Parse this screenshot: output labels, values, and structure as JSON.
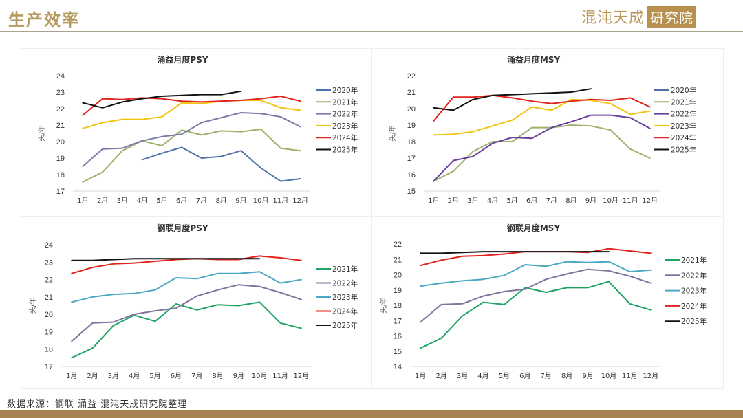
{
  "header": {
    "title": "生产效率",
    "logo_script": "混沌天成",
    "logo_box": "研究院"
  },
  "colors": {
    "title": "#b49a5e",
    "footer_bar": "#a98151",
    "2020年": "#4e73a8",
    "2021年_yongyi": "#9db26a",
    "2022年_yongyi_psy": "#7a79a8",
    "2022年_yongyi_msy": "#6a3fa0",
    "2023年_yongyi": "#f2c40f",
    "2024年": "#e0231c",
    "2025年": "#111111",
    "2021年_ganglian": "#1fa463",
    "2022年_ganglian": "#7f73a0",
    "2023年_ganglian": "#4aa8c4"
  },
  "source": "数据来源：钢联 涌益 混沌天成研究院整理",
  "chart_data": [
    {
      "id": "yongyi-psy",
      "type": "line",
      "title": "涌益月度PSY",
      "xlabel": "",
      "ylabel": "头/年",
      "ylim": [
        17,
        24
      ],
      "yticks": [
        17,
        18,
        19,
        20,
        21,
        22,
        23,
        24
      ],
      "categories": [
        "1月",
        "2月",
        "3月",
        "4月",
        "5月",
        "6月",
        "7月",
        "8月",
        "9月",
        "10月",
        "11月",
        "12月"
      ],
      "legend": "right",
      "grid": false,
      "series": [
        {
          "name": "2020年",
          "color": "#4e73a8",
          "values": [
            null,
            null,
            null,
            18.9,
            19.3,
            19.65,
            19.0,
            19.1,
            19.45,
            18.4,
            17.6,
            17.75
          ]
        },
        {
          "name": "2021年",
          "color": "#9db26a",
          "values": [
            17.55,
            18.15,
            19.45,
            20.05,
            19.75,
            20.7,
            20.4,
            20.65,
            20.6,
            20.75,
            19.6,
            19.45
          ]
        },
        {
          "name": "2022年",
          "color": "#7a79a8",
          "values": [
            18.5,
            19.55,
            19.6,
            20.05,
            20.3,
            20.45,
            21.15,
            21.45,
            21.75,
            21.7,
            21.5,
            20.9
          ]
        },
        {
          "name": "2023年",
          "color": "#f2c40f",
          "values": [
            20.8,
            21.15,
            21.35,
            21.35,
            21.5,
            22.35,
            22.3,
            22.45,
            22.5,
            22.5,
            22.05,
            21.9
          ]
        },
        {
          "name": "2024年",
          "color": "#e0231c",
          "values": [
            21.6,
            22.6,
            22.55,
            22.65,
            22.6,
            22.45,
            22.4,
            22.45,
            22.5,
            22.6,
            22.75,
            22.45
          ]
        },
        {
          "name": "2025年",
          "color": "#111111",
          "values": [
            22.35,
            22.05,
            22.4,
            22.6,
            22.75,
            22.8,
            22.85,
            22.85,
            23.05,
            null,
            null,
            null
          ]
        }
      ]
    },
    {
      "id": "yongyi-msy",
      "type": "line",
      "title": "涌益月度MSY",
      "xlabel": "",
      "ylabel": "头/年",
      "ylim": [
        15,
        22
      ],
      "yticks": [
        15,
        16,
        17,
        18,
        19,
        20,
        21,
        22
      ],
      "categories": [
        "1月",
        "2月",
        "3月",
        "4月",
        "5月",
        "6月",
        "7月",
        "8月",
        "9月",
        "10月",
        "11月",
        "12月"
      ],
      "legend": "right",
      "grid": false,
      "series": [
        {
          "name": "2020年",
          "color": "#4e73a8",
          "values": [
            null,
            null,
            null,
            null,
            null,
            null,
            null,
            null,
            null,
            null,
            null,
            null
          ]
        },
        {
          "name": "2021年",
          "color": "#9db26a",
          "values": [
            15.6,
            16.2,
            17.4,
            18.0,
            18.0,
            18.85,
            18.85,
            19.0,
            18.95,
            18.7,
            17.55,
            17.0
          ]
        },
        {
          "name": "2022年",
          "color": "#6a3fa0",
          "values": [
            15.6,
            16.85,
            17.1,
            17.9,
            18.25,
            18.2,
            18.85,
            19.2,
            19.6,
            19.6,
            19.45,
            18.8
          ]
        },
        {
          "name": "2023年",
          "color": "#f2c40f",
          "values": [
            18.4,
            18.45,
            18.6,
            18.95,
            19.3,
            20.1,
            19.9,
            20.55,
            20.5,
            20.3,
            19.65,
            19.85
          ]
        },
        {
          "name": "2024年",
          "color": "#e0231c",
          "values": [
            19.25,
            20.7,
            20.7,
            20.8,
            20.65,
            20.45,
            20.3,
            20.45,
            20.55,
            20.5,
            20.65,
            20.1
          ]
        },
        {
          "name": "2025年",
          "color": "#111111",
          "values": [
            20.05,
            19.9,
            20.55,
            20.8,
            20.85,
            20.9,
            20.95,
            21.0,
            21.2,
            null,
            null,
            null
          ]
        }
      ]
    },
    {
      "id": "ganglian-psy",
      "type": "line",
      "title": "钢联月度PSY",
      "xlabel": "",
      "ylabel": "头/年",
      "ylim": [
        17,
        24
      ],
      "yticks": [
        17,
        18,
        19,
        20,
        21,
        22,
        23,
        24
      ],
      "categories": [
        "1月",
        "2月",
        "3月",
        "4月",
        "5月",
        "6月",
        "7月",
        "8月",
        "9月",
        "10月",
        "11月",
        "12月"
      ],
      "legend": "right",
      "grid": false,
      "series": [
        {
          "name": "2021年",
          "color": "#1fa463",
          "values": [
            17.5,
            18.05,
            19.35,
            19.95,
            19.6,
            20.6,
            20.25,
            20.55,
            20.5,
            20.7,
            19.5,
            19.2
          ]
        },
        {
          "name": "2022年",
          "color": "#7f73a0",
          "values": [
            18.45,
            19.5,
            19.55,
            20.0,
            20.2,
            20.35,
            21.05,
            21.4,
            21.7,
            21.6,
            21.25,
            20.85
          ]
        },
        {
          "name": "2023年",
          "color": "#4aa8c4",
          "values": [
            20.7,
            21.0,
            21.15,
            21.2,
            21.4,
            22.1,
            22.05,
            22.35,
            22.35,
            22.45,
            21.8,
            22.0
          ]
        },
        {
          "name": "2024年",
          "color": "#e0231c",
          "values": [
            22.35,
            22.7,
            22.9,
            22.95,
            23.05,
            23.15,
            23.2,
            23.15,
            23.15,
            23.35,
            23.25,
            23.1
          ]
        },
        {
          "name": "2025年",
          "color": "#111111",
          "values": [
            23.1,
            23.1,
            23.15,
            23.2,
            23.2,
            23.2,
            23.2,
            23.2,
            23.2,
            23.2,
            null,
            null
          ]
        }
      ]
    },
    {
      "id": "ganglian-msy",
      "type": "line",
      "title": "钢联月度MSY",
      "xlabel": "",
      "ylabel": "头/年",
      "ylim": [
        14,
        22
      ],
      "yticks": [
        14,
        15,
        16,
        17,
        18,
        19,
        20,
        21,
        22
      ],
      "categories": [
        "1月",
        "2月",
        "3月",
        "4月",
        "5月",
        "6月",
        "7月",
        "8月",
        "9月",
        "10月",
        "11月",
        "12月"
      ],
      "legend": "right",
      "grid": false,
      "series": [
        {
          "name": "2021年",
          "color": "#1fa463",
          "values": [
            15.2,
            15.85,
            17.3,
            18.2,
            18.05,
            19.15,
            18.85,
            19.15,
            19.15,
            19.55,
            18.1,
            17.7
          ]
        },
        {
          "name": "2022年",
          "color": "#7f73a0",
          "values": [
            16.9,
            18.05,
            18.1,
            18.6,
            18.9,
            19.05,
            19.7,
            20.05,
            20.35,
            20.25,
            19.9,
            19.45
          ]
        },
        {
          "name": "2023年",
          "color": "#4aa8c4",
          "values": [
            19.25,
            19.45,
            19.6,
            19.7,
            19.95,
            20.65,
            20.55,
            20.85,
            20.8,
            20.85,
            20.2,
            20.3
          ]
        },
        {
          "name": "2024年",
          "color": "#e0231c",
          "values": [
            20.6,
            20.95,
            21.2,
            21.25,
            21.35,
            21.5,
            21.5,
            21.5,
            21.45,
            21.7,
            21.55,
            21.4
          ]
        },
        {
          "name": "2025年",
          "color": "#111111",
          "values": [
            21.4,
            21.4,
            21.45,
            21.5,
            21.5,
            21.5,
            21.5,
            21.5,
            21.5,
            21.5,
            null,
            null
          ]
        }
      ]
    }
  ]
}
